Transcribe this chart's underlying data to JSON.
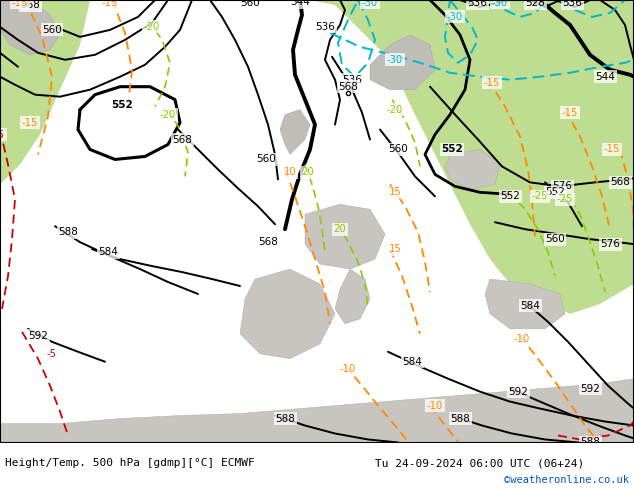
{
  "title_left": "Height/Temp. 500 hPa [gdmp][°C] ECMWF",
  "title_right": "Tu 24-09-2024 06:00 UTC (06+24)",
  "credit": "©weatheronline.co.uk",
  "credit_color": "#0055cc",
  "figsize": [
    6.34,
    4.9
  ],
  "dpi": 100,
  "bg_gray": "#d0cdc8",
  "land_green": "#b8d890",
  "title_fs": 8.0,
  "credit_fs": 7.5
}
